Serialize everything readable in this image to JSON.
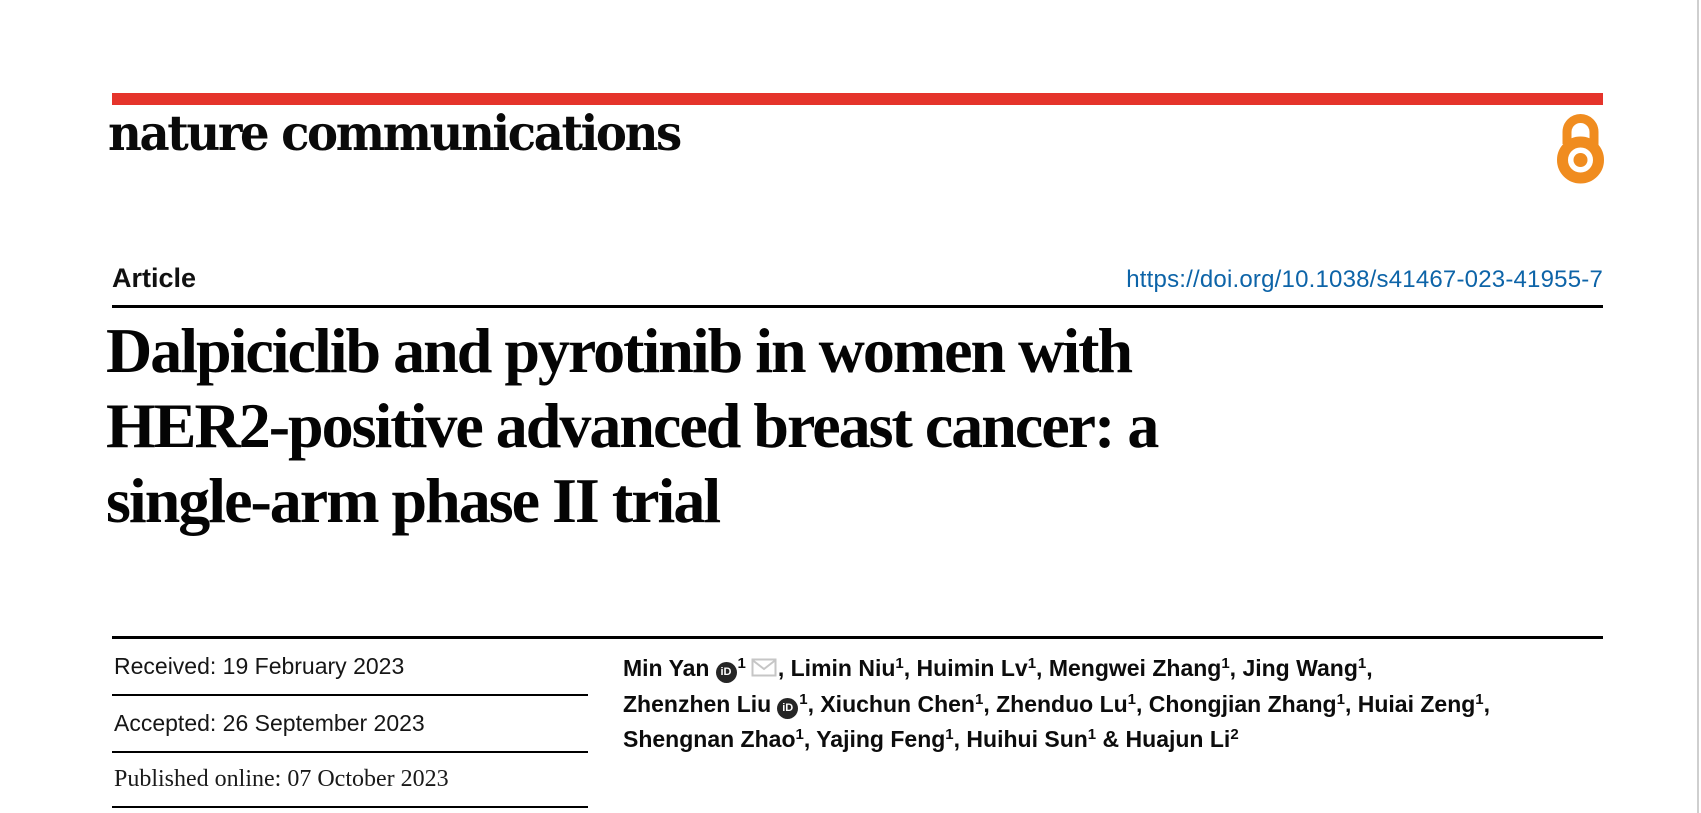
{
  "colors": {
    "red_bar": "#e5342b",
    "oa_orange": "#f08c1f",
    "doi_blue": "#0d64a8",
    "orcid_bg": "#262626",
    "envelope_gray": "#c6c6c6",
    "edge_gray": "#cfcfcf",
    "rule_black": "#000000"
  },
  "icons": {
    "open_access": "open-access-lock-icon",
    "orcid": "orcid-id-icon",
    "email": "envelope-icon"
  },
  "brand": {
    "wordmark": "nature communications"
  },
  "article_meta": {
    "type_label": "Article",
    "doi": "https://doi.org/10.1038/s41467-023-41955-7"
  },
  "title": {
    "lines": [
      "Dalpiciclib and pyrotinib in women with",
      "HER2-positive advanced breast cancer: a",
      "single-arm phase II trial"
    ]
  },
  "history": {
    "received": "Received: 19 February 2023",
    "accepted": "Accepted: 26 September 2023",
    "published": "Published online: 07 October 2023"
  },
  "authors": {
    "orcid_icon_label": "iD",
    "lines": [
      [
        {
          "name": "Min Yan",
          "orcid": true,
          "sup": "1",
          "email": true,
          "sep": ", "
        },
        {
          "name": "Limin Niu",
          "sup": "1",
          "sep": ", "
        },
        {
          "name": "Huimin Lv",
          "sup": "1",
          "sep": ", "
        },
        {
          "name": "Mengwei Zhang",
          "sup": "1",
          "sep": ", "
        },
        {
          "name": "Jing Wang",
          "sup": "1",
          "sep": ","
        }
      ],
      [
        {
          "name": "Zhenzhen Liu",
          "orcid": true,
          "sup": "1",
          "sep": ", "
        },
        {
          "name": "Xiuchun Chen",
          "sup": "1",
          "sep": ", "
        },
        {
          "name": "Zhenduo Lu",
          "sup": "1",
          "sep": ", "
        },
        {
          "name": "Chongjian Zhang",
          "sup": "1",
          "sep": ", "
        },
        {
          "name": "Huiai Zeng",
          "sup": "1",
          "sep": ","
        }
      ],
      [
        {
          "name": "Shengnan Zhao",
          "sup": "1",
          "sep": ", "
        },
        {
          "name": "Yajing Feng",
          "sup": "1",
          "sep": ", "
        },
        {
          "name": "Huihui Sun",
          "sup": "1",
          "sep": " & "
        },
        {
          "name": "Huajun Li",
          "sup": "2",
          "sep": ""
        }
      ]
    ]
  }
}
